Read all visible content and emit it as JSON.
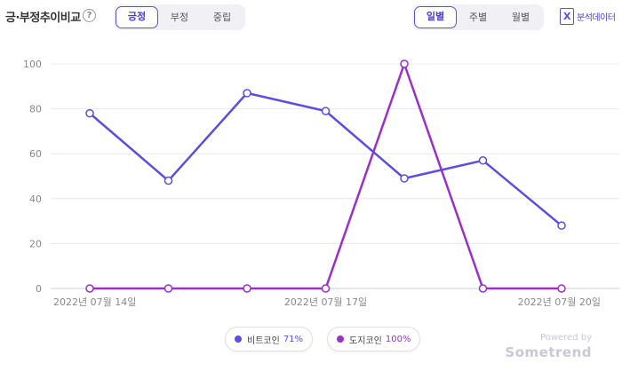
{
  "header": {
    "title": "긍·부정추이비교",
    "help_glyph": "?",
    "sentiment_tabs": [
      "긍정",
      "부정",
      "중립"
    ],
    "period_tabs": [
      "일별",
      "주별",
      "월별"
    ],
    "analysis_label": "분석데이터",
    "analysis_icon_glyph": "X"
  },
  "legend": [
    {
      "name": "비트코인",
      "pct": "71%",
      "color": "#5b4ee0"
    },
    {
      "name": "도지코인",
      "pct": "100%",
      "color": "#9b2fc9"
    }
  ],
  "branding": {
    "powered": "Powered by",
    "name": "Sometrend"
  },
  "chart_data": {
    "type": "line",
    "x": [
      "2022-07-14",
      "2022-07-15",
      "2022-07-16",
      "2022-07-17",
      "2022-07-18",
      "2022-07-19",
      "2022-07-20"
    ],
    "x_tick_labels": [
      {
        "index": 0,
        "label": "2022년 07월 14일"
      },
      {
        "index": 3,
        "label": "2022년 07월 17일"
      },
      {
        "index": 6,
        "label": "2022년 07월 20일"
      }
    ],
    "series": [
      {
        "name": "비트코인",
        "color": "#5b4ee0",
        "values": [
          78,
          48,
          87,
          79,
          49,
          57,
          28
        ]
      },
      {
        "name": "도지코인",
        "color": "#9b2fc9",
        "values": [
          0,
          0,
          0,
          0,
          100,
          0,
          0
        ]
      }
    ],
    "ylim": [
      0,
      100
    ],
    "yticks": [
      0,
      20,
      40,
      60,
      80,
      100
    ],
    "grid": true,
    "legend_position": "bottom"
  }
}
